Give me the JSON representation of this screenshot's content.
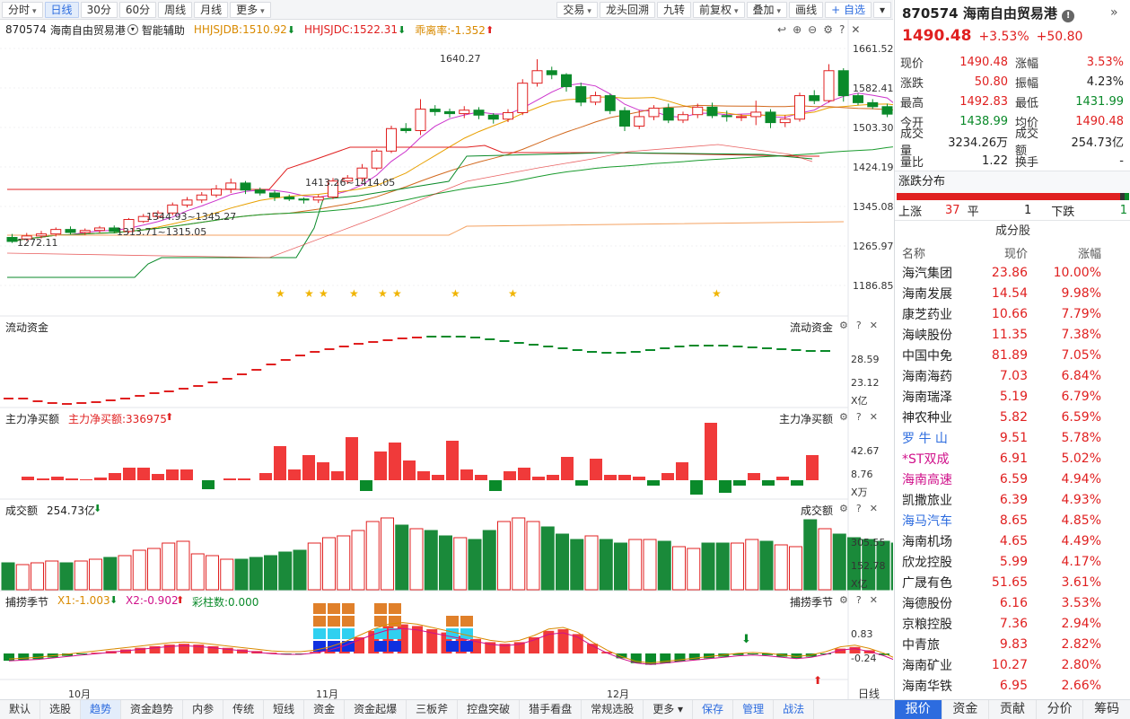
{
  "toolbar": {
    "left": [
      {
        "label": "分时",
        "caret": true
      },
      {
        "label": "日线",
        "active": true
      },
      {
        "label": "30分"
      },
      {
        "label": "60分"
      },
      {
        "label": "周线"
      },
      {
        "label": "月线"
      },
      {
        "label": "更多",
        "caret": true
      }
    ],
    "right": [
      {
        "label": "交易",
        "caret": true
      },
      {
        "label": "龙头回溯"
      },
      {
        "label": "九转"
      },
      {
        "label": "前复权",
        "caret": true
      },
      {
        "label": "叠加",
        "caret": true
      },
      {
        "label": "画线"
      },
      {
        "label": "+ 自选",
        "blue": true
      },
      {
        "label": "▾"
      }
    ]
  },
  "info": {
    "code": "870574",
    "name": "海南自由贸易港",
    "assist": "智能辅助",
    "jdb": "HHJSJDB:1510.92",
    "jdc": "HHJSJDC:1522.31",
    "glr": "乖离率:-1.352"
  },
  "yaxis_main": [
    "1661.52",
    "1582.41",
    "1503.30",
    "1424.19",
    "1345.08",
    "1265.97",
    "1186.85"
  ],
  "price_notes": {
    "high": "1640.27",
    "n1": "1413.26~1414.05",
    "n2": "1344.93~1345.27",
    "n3": "1313.71~1315.05",
    "low": "1272.11"
  },
  "sub1": {
    "title": "流动资金",
    "right_title": "流动资金",
    "y": [
      "28.59",
      "23.12"
    ],
    "unit": "X亿"
  },
  "sub2": {
    "title": "主力净买额",
    "label": "主力净买额:336975",
    "right_title": "主力净买额",
    "y": [
      "42.67",
      "8.76"
    ],
    "unit": "X万"
  },
  "sub3": {
    "title": "成交额",
    "label": "254.73亿",
    "right_title": "成交额",
    "y": [
      "305.55",
      "152.78"
    ],
    "unit": "X亿"
  },
  "sub4": {
    "title": "捕捞季节",
    "x1": "X1:-1.003",
    "x2": "X2:-0.902",
    "cz": "彩柱数:0.000",
    "right_title": "捕捞季节",
    "y": [
      "0.83",
      "-0.24"
    ]
  },
  "xaxis": [
    "10月",
    "11月",
    "12月"
  ],
  "period_tag": "日线",
  "bottom_tabs": [
    {
      "label": "默认"
    },
    {
      "label": "选股"
    },
    {
      "label": "趋势",
      "active": true
    },
    {
      "label": "资金趋势"
    },
    {
      "label": "内参"
    },
    {
      "label": "传统"
    },
    {
      "label": "短线"
    },
    {
      "label": "资金"
    },
    {
      "label": "资金起爆"
    },
    {
      "label": "三板斧"
    },
    {
      "label": "控盘突破"
    },
    {
      "label": "猎手看盘"
    },
    {
      "label": "常规选股"
    },
    {
      "label": "更多 ▾"
    },
    {
      "label": "保存",
      "blue": true
    },
    {
      "label": "管理",
      "blue": true
    },
    {
      "label": "战法",
      "blue": true
    }
  ],
  "panel": {
    "code": "870574",
    "name": "海南自由贸易港",
    "price": "1490.48",
    "pct": "+3.53%",
    "chg": "+50.80",
    "quotes": [
      [
        "现价",
        "1490.48",
        "red",
        "涨幅",
        "3.53%",
        "red"
      ],
      [
        "涨跌",
        "50.80",
        "red",
        "振幅",
        "4.23%",
        ""
      ],
      [
        "最高",
        "1492.83",
        "red",
        "最低",
        "1431.99",
        "green"
      ],
      [
        "今开",
        "1438.99",
        "green",
        "均价",
        "1490.48",
        "red"
      ],
      [
        "成交量",
        "3234.26万",
        "",
        "成交额",
        "254.73亿",
        ""
      ],
      [
        "量比",
        "1.22",
        "",
        "换手",
        "-",
        ""
      ]
    ],
    "dist_title": "涨跌分布",
    "up_label": "上涨",
    "up": "37",
    "flat_label": "平",
    "flat": "1",
    "down_label": "下跌",
    "down": "1",
    "cf_title": "成分股",
    "cf_head": [
      "名称",
      "现价",
      "涨幅"
    ],
    "stocks": [
      [
        "海汽集团",
        "23.86",
        "10.00%",
        ""
      ],
      [
        "海南发展",
        "14.54",
        "9.98%",
        ""
      ],
      [
        "康芝药业",
        "10.66",
        "7.79%",
        ""
      ],
      [
        "海峡股份",
        "11.35",
        "7.38%",
        ""
      ],
      [
        "中国中免",
        "81.89",
        "7.05%",
        ""
      ],
      [
        "海南海药",
        "7.03",
        "6.84%",
        ""
      ],
      [
        "海南瑞泽",
        "5.19",
        "6.79%",
        ""
      ],
      [
        "神农种业",
        "5.82",
        "6.59%",
        ""
      ],
      [
        "罗 牛 山",
        "9.51",
        "5.78%",
        "#2d6cdf"
      ],
      [
        "*ST双成",
        "6.91",
        "5.02%",
        "#d0108a"
      ],
      [
        "海南高速",
        "6.59",
        "4.94%",
        "#d0108a"
      ],
      [
        "凯撒旅业",
        "6.39",
        "4.93%",
        ""
      ],
      [
        "海马汽车",
        "8.65",
        "4.85%",
        "#2d6cdf"
      ],
      [
        "海南机场",
        "4.65",
        "4.49%",
        ""
      ],
      [
        "欣龙控股",
        "5.99",
        "4.17%",
        ""
      ],
      [
        "广晟有色",
        "51.65",
        "3.61%",
        ""
      ],
      [
        "海德股份",
        "6.16",
        "3.53%",
        ""
      ],
      [
        "京粮控股",
        "7.36",
        "2.94%",
        ""
      ],
      [
        "中青旅",
        "9.83",
        "2.82%",
        ""
      ],
      [
        "海南矿业",
        "10.27",
        "2.80%",
        ""
      ],
      [
        "海南华铁",
        "6.95",
        "2.66%",
        ""
      ]
    ],
    "bottom_tabs": [
      {
        "label": "报价",
        "active": true
      },
      {
        "label": "资金"
      },
      {
        "label": "贡献"
      },
      {
        "label": "分价"
      },
      {
        "label": "筹码"
      }
    ]
  },
  "chart_data": {
    "type": "candlestick",
    "ylim": [
      1186.85,
      1661.52
    ],
    "candles": [
      [
        1283,
        1275,
        1290,
        1272
      ],
      [
        1280,
        1286,
        1292,
        1276
      ],
      [
        1286,
        1290,
        1296,
        1281
      ],
      [
        1290,
        1299,
        1303,
        1285
      ],
      [
        1299,
        1293,
        1305,
        1289
      ],
      [
        1293,
        1297,
        1301,
        1288
      ],
      [
        1297,
        1302,
        1306,
        1292
      ],
      [
        1302,
        1295,
        1307,
        1291
      ],
      [
        1295,
        1319,
        1322,
        1292
      ],
      [
        1315,
        1325,
        1330,
        1312
      ],
      [
        1325,
        1332,
        1337,
        1320
      ],
      [
        1332,
        1348,
        1353,
        1327
      ],
      [
        1348,
        1358,
        1364,
        1343
      ],
      [
        1358,
        1368,
        1374,
        1352
      ],
      [
        1368,
        1380,
        1388,
        1363
      ],
      [
        1380,
        1392,
        1401,
        1372
      ],
      [
        1392,
        1378,
        1396,
        1370
      ],
      [
        1378,
        1372,
        1383,
        1367
      ],
      [
        1372,
        1364,
        1377,
        1356
      ],
      [
        1364,
        1360,
        1369,
        1356
      ],
      [
        1360,
        1358,
        1363,
        1351
      ],
      [
        1358,
        1364,
        1369,
        1352
      ],
      [
        1364,
        1396,
        1402,
        1360
      ],
      [
        1396,
        1402,
        1408,
        1390
      ],
      [
        1402,
        1422,
        1430,
        1396
      ],
      [
        1422,
        1456,
        1460,
        1418
      ],
      [
        1456,
        1501,
        1507,
        1452
      ],
      [
        1501,
        1497,
        1512,
        1492
      ],
      [
        1497,
        1540,
        1560,
        1488
      ],
      [
        1540,
        1535,
        1548,
        1527
      ],
      [
        1535,
        1531,
        1541,
        1523
      ],
      [
        1531,
        1538,
        1546,
        1522
      ],
      [
        1538,
        1528,
        1544,
        1520
      ],
      [
        1528,
        1520,
        1532,
        1511
      ],
      [
        1520,
        1533,
        1540,
        1514
      ],
      [
        1533,
        1592,
        1600,
        1528
      ],
      [
        1592,
        1617,
        1640,
        1585
      ],
      [
        1617,
        1609,
        1625,
        1600
      ],
      [
        1609,
        1585,
        1612,
        1575
      ],
      [
        1585,
        1554,
        1593,
        1546
      ],
      [
        1554,
        1567,
        1575,
        1548
      ],
      [
        1567,
        1537,
        1571,
        1530
      ],
      [
        1537,
        1506,
        1544,
        1496
      ],
      [
        1506,
        1525,
        1538,
        1500
      ],
      [
        1525,
        1542,
        1548,
        1518
      ],
      [
        1542,
        1518,
        1551,
        1512
      ],
      [
        1518,
        1529,
        1535,
        1512
      ],
      [
        1529,
        1544,
        1551,
        1522
      ],
      [
        1544,
        1527,
        1553,
        1522
      ],
      [
        1527,
        1525,
        1537,
        1515
      ],
      [
        1525,
        1525,
        1530,
        1516
      ],
      [
        1525,
        1534,
        1557,
        1508
      ],
      [
        1534,
        1513,
        1540,
        1502
      ],
      [
        1513,
        1520,
        1528,
        1504
      ],
      [
        1520,
        1567,
        1573,
        1515
      ],
      [
        1567,
        1557,
        1578,
        1550
      ],
      [
        1557,
        1617,
        1630,
        1553
      ],
      [
        1617,
        1567,
        1622,
        1555
      ],
      [
        1567,
        1553,
        1572,
        1548
      ],
      [
        1553,
        1545,
        1560,
        1540
      ],
      [
        1545,
        1530,
        1551,
        1524
      ],
      [
        1530,
        1501,
        1534,
        1495
      ],
      [
        1501,
        1478,
        1505,
        1465
      ],
      [
        1478,
        1440,
        1482,
        1432
      ],
      [
        1440,
        1490,
        1493,
        1432
      ]
    ]
  }
}
